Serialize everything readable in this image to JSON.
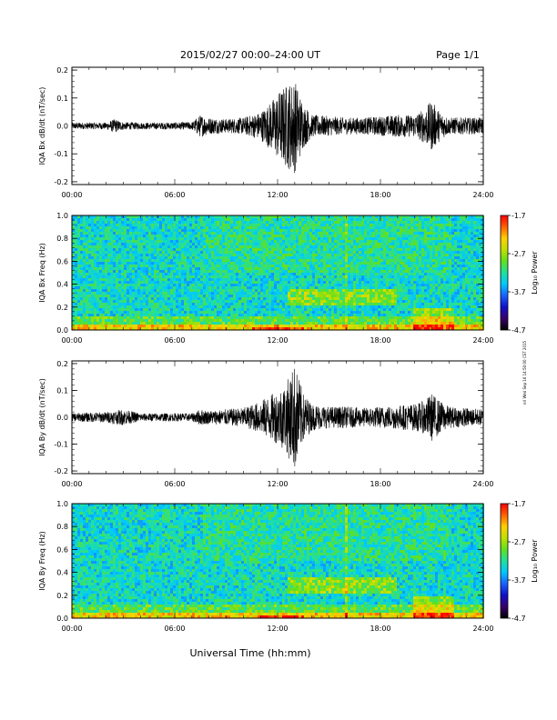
{
  "header": {
    "title": "2015/02/27  00:00–24:00 UT",
    "page": "Page 1/1"
  },
  "side_stamp": "nrl Wed Sep 16 14:50:00 CST 2015",
  "colors": {
    "trace": "#000000",
    "colorbar": [
      "#000000",
      "#3a006a",
      "#1010c8",
      "#1a60ff",
      "#00c8ff",
      "#20e0a0",
      "#60e020",
      "#c0e000",
      "#ffd000",
      "#ff6000",
      "#ff0000"
    ]
  },
  "chart_data": [
    {
      "type": "line",
      "ylabel": "IQA Bx dB/dt (nT/sec)",
      "xlabel": "",
      "x_ticks": [
        "00:00",
        "06:00",
        "12:00",
        "18:00",
        "24:00"
      ],
      "xlim": [
        0,
        24
      ],
      "ylim": [
        -0.21,
        0.21
      ],
      "y_ticks": [
        -0.2,
        -0.1,
        0.0,
        0.1,
        0.2
      ],
      "y_tick_labels": [
        "-0.2",
        "-0.1",
        "0.0",
        "0.1",
        "0.2"
      ],
      "envelope": {
        "hours": [
          0,
          1,
          2,
          2.5,
          3,
          4,
          5,
          6,
          7,
          7.5,
          8,
          9,
          10,
          11,
          11.5,
          12,
          12.5,
          13,
          13.5,
          14,
          15,
          16,
          17,
          18,
          19,
          20,
          20.5,
          21,
          21.5,
          22,
          23,
          24
        ],
        "amplitude": [
          0.012,
          0.012,
          0.012,
          0.025,
          0.014,
          0.012,
          0.012,
          0.013,
          0.014,
          0.04,
          0.03,
          0.025,
          0.03,
          0.05,
          0.08,
          0.12,
          0.15,
          0.17,
          0.08,
          0.04,
          0.035,
          0.03,
          0.03,
          0.035,
          0.04,
          0.04,
          0.06,
          0.09,
          0.05,
          0.03,
          0.03,
          0.03
        ]
      }
    },
    {
      "type": "heatmap",
      "ylabel": "IQA Bx Freq (Hz)",
      "xlabel": "",
      "x_ticks": [
        "00:00",
        "06:00",
        "12:00",
        "18:00",
        "24:00"
      ],
      "xlim": [
        0,
        24
      ],
      "ylim": [
        0,
        1.0
      ],
      "y_ticks": [
        0.0,
        0.2,
        0.4,
        0.6,
        0.8,
        1.0
      ],
      "y_tick_labels": [
        "0.0",
        "0.2",
        "0.4",
        "0.6",
        "0.8",
        "1.0"
      ],
      "colorbar": {
        "label": "Log₁₀ Power",
        "range": [
          -4.7,
          -1.7
        ],
        "ticks": [
          -1.7,
          -2.7,
          -3.7,
          -4.7
        ],
        "tick_labels": [
          "-1.7",
          "-2.7",
          "-3.7",
          "-4.7"
        ]
      }
    },
    {
      "type": "line",
      "ylabel": "IQA By dB/dt (nT/sec)",
      "xlabel": "",
      "x_ticks": [
        "00:00",
        "06:00",
        "12:00",
        "18:00",
        "24:00"
      ],
      "xlim": [
        0,
        24
      ],
      "ylim": [
        -0.21,
        0.21
      ],
      "y_ticks": [
        -0.2,
        -0.1,
        0.0,
        0.1,
        0.2
      ],
      "y_tick_labels": [
        "-0.2",
        "-0.1",
        "0.0",
        "0.1",
        "0.2"
      ],
      "envelope": {
        "hours": [
          0,
          1,
          2,
          3,
          4,
          5,
          6,
          7,
          7.5,
          8,
          9,
          10,
          11,
          12,
          12.5,
          13,
          13.5,
          14,
          15,
          16,
          17,
          18,
          19,
          20,
          20.5,
          21,
          21.5,
          22,
          23,
          24
        ],
        "amplitude": [
          0.015,
          0.018,
          0.02,
          0.03,
          0.015,
          0.015,
          0.015,
          0.015,
          0.03,
          0.025,
          0.03,
          0.035,
          0.06,
          0.1,
          0.13,
          0.2,
          0.09,
          0.05,
          0.04,
          0.04,
          0.035,
          0.04,
          0.045,
          0.05,
          0.06,
          0.09,
          0.06,
          0.04,
          0.035,
          0.03
        ]
      }
    },
    {
      "type": "heatmap",
      "ylabel": "IQA By Freq (Hz)",
      "xlabel": "Universal Time (hh:mm)",
      "x_ticks": [
        "00:00",
        "06:00",
        "12:00",
        "18:00",
        "24:00"
      ],
      "xlim": [
        0,
        24
      ],
      "ylim": [
        0,
        1.0
      ],
      "y_ticks": [
        0.0,
        0.2,
        0.4,
        0.6,
        0.8,
        1.0
      ],
      "y_tick_labels": [
        "0.0",
        "0.2",
        "0.4",
        "0.6",
        "0.8",
        "1.0"
      ],
      "colorbar": {
        "label": "Log₁₀ Power",
        "range": [
          -4.7,
          -1.7
        ],
        "ticks": [
          -1.7,
          -2.7,
          -3.7,
          -4.7
        ],
        "tick_labels": [
          "-1.7",
          "-2.7",
          "-3.7",
          "-4.7"
        ]
      }
    }
  ]
}
